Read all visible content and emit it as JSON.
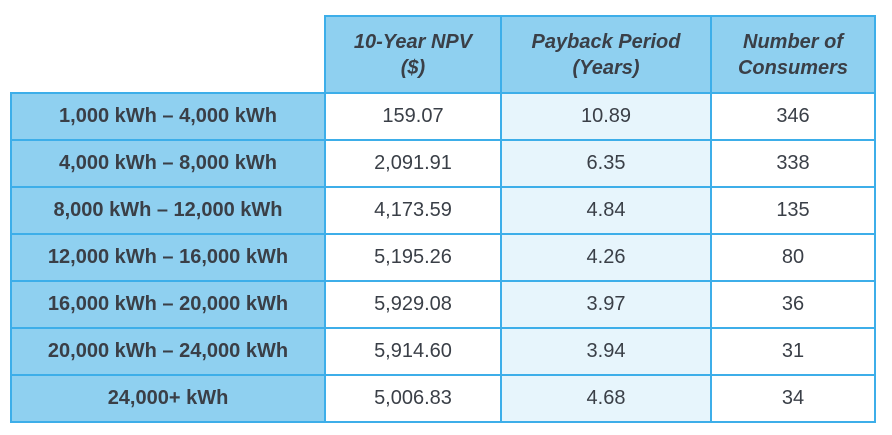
{
  "headers": {
    "npv_line1": "10-Year NPV",
    "npv_line2": "($)",
    "payback_line1": "Payback Period",
    "payback_line2": "(Years)",
    "consumers_line1": "Number of",
    "consumers_line2": "Consumers"
  },
  "rows": [
    {
      "range": "1,000 kWh – 4,000 kWh",
      "npv": "159.07",
      "payback": "10.89",
      "consumers": "346"
    },
    {
      "range": "4,000 kWh – 8,000 kWh",
      "npv": "2,091.91",
      "payback": "6.35",
      "consumers": "338"
    },
    {
      "range": "8,000 kWh – 12,000 kWh",
      "npv": "4,173.59",
      "payback": "4.84",
      "consumers": "135"
    },
    {
      "range": "12,000 kWh – 16,000 kWh",
      "npv": "5,195.26",
      "payback": "4.26",
      "consumers": "80"
    },
    {
      "range": "16,000 kWh – 20,000 kWh",
      "npv": "5,929.08",
      "payback": "3.97",
      "consumers": "36"
    },
    {
      "range": "20,000 kWh – 24,000 kWh",
      "npv": "5,914.60",
      "payback": "3.94",
      "consumers": "31"
    },
    {
      "range": "24,000+ kWh",
      "npv": "5,006.83",
      "payback": "4.68",
      "consumers": "34"
    }
  ],
  "colors": {
    "border": "#3daee9",
    "header_fill": "#8fd0f0",
    "mid_column_fill": "#e7f5fc",
    "text": "#3a3f47"
  }
}
